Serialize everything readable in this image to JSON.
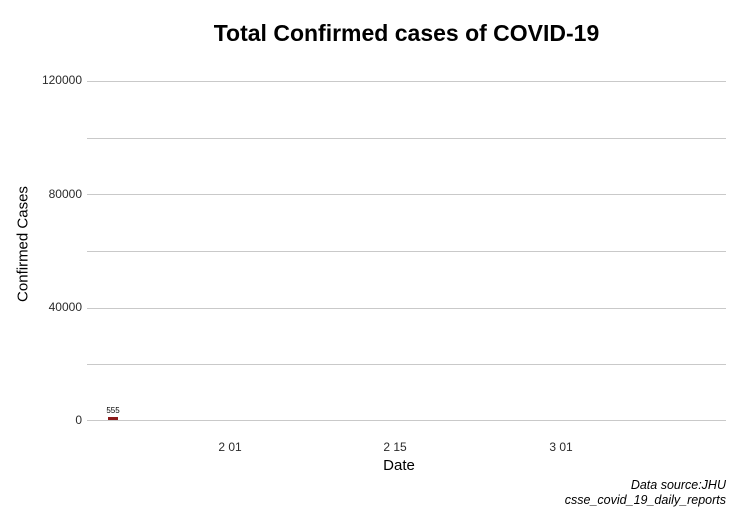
{
  "chart_data": {
    "type": "bar",
    "title": "Total Confirmed cases of COVID-19",
    "xlabel": "Date",
    "ylabel": "Confirmed Cases",
    "bars": [
      {
        "value": 555,
        "label": "555"
      }
    ],
    "x_ticks": [
      "2 01",
      "2 15",
      "3 01"
    ],
    "y_ticks": [
      0,
      40000,
      80000,
      120000
    ],
    "y_gridline_step": 20000,
    "ylim": [
      0,
      120000
    ],
    "grid": true,
    "legend_position": "none",
    "bar_color": "#8b1a1a",
    "gridline_color": "#c9c9c9",
    "background_color": "#ffffff",
    "caption_lines": [
      "Data source:JHU",
      "csse_covid_19_daily_reports"
    ]
  }
}
